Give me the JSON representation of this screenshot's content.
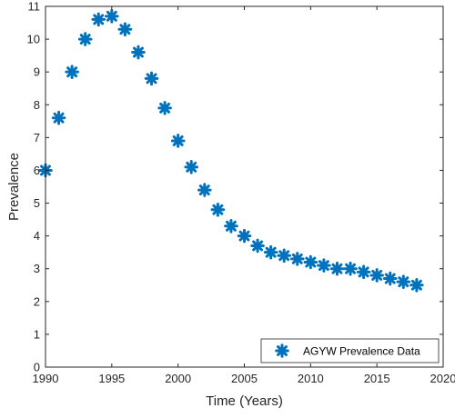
{
  "chart_data": {
    "type": "scatter",
    "title": "",
    "xlabel": "Time (Years)",
    "ylabel": "Prevalence",
    "xlim": [
      1990,
      2020
    ],
    "ylim": [
      0,
      11
    ],
    "xticks": [
      1990,
      1995,
      2000,
      2005,
      2010,
      2015,
      2020
    ],
    "yticks": [
      0,
      1,
      2,
      3,
      4,
      5,
      6,
      7,
      8,
      9,
      10,
      11
    ],
    "grid": false,
    "legend_position": "bottom-right",
    "marker": "asterisk",
    "series": [
      {
        "name": "AGYW Prevalence Data",
        "color": "#0072BD",
        "x": [
          1990,
          1991,
          1992,
          1993,
          1994,
          1995,
          1996,
          1997,
          1998,
          1999,
          2000,
          2001,
          2002,
          2003,
          2004,
          2005,
          2006,
          2007,
          2008,
          2009,
          2010,
          2011,
          2012,
          2013,
          2014,
          2015,
          2016,
          2017,
          2018
        ],
        "y": [
          6.0,
          7.6,
          9.0,
          10.0,
          10.6,
          10.7,
          10.3,
          9.6,
          8.8,
          7.9,
          6.9,
          6.1,
          5.4,
          4.8,
          4.3,
          4.0,
          3.7,
          3.5,
          3.4,
          3.3,
          3.2,
          3.1,
          3.0,
          3.0,
          2.9,
          2.8,
          2.7,
          2.6,
          2.5
        ]
      }
    ]
  }
}
